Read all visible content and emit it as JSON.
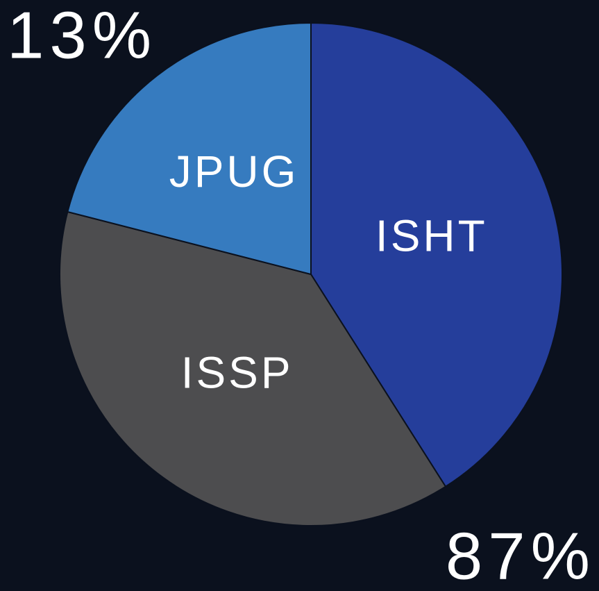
{
  "chart_data": {
    "type": "pie",
    "categories": [
      "ISHT",
      "ISSP",
      "JPUG"
    ],
    "values": [
      41,
      38,
      21
    ],
    "colors": [
      "#253e9b",
      "#4d4d4f",
      "#367bbf"
    ],
    "annotations": [
      "13%",
      "87%"
    ]
  }
}
